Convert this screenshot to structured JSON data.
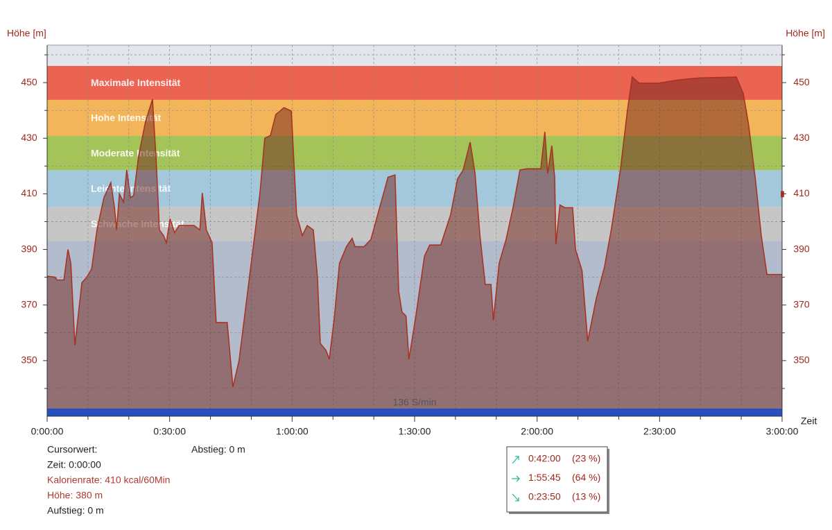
{
  "chart_data": {
    "type": "area",
    "y_label": "Höhe [m]",
    "y2_label": "Höhe [m]",
    "x_label": "Zeit",
    "xlim": [
      0,
      180
    ],
    "ylim": [
      330,
      463.5
    ],
    "xticks": [
      {
        "value": 0,
        "label": "0:00:00"
      },
      {
        "value": 30,
        "label": "0:30:00"
      },
      {
        "value": 60,
        "label": "1:00:00"
      },
      {
        "value": 90,
        "label": "1:30:00"
      },
      {
        "value": 120,
        "label": "2:00:00"
      },
      {
        "value": 150,
        "label": "2:30:00"
      },
      {
        "value": 180,
        "label": "3:00:00"
      }
    ],
    "xminor": [
      10,
      20,
      40,
      50,
      70,
      80,
      100,
      110,
      130,
      140,
      160,
      170
    ],
    "yticks": [
      350,
      370,
      390,
      410,
      430,
      450
    ],
    "yminor": [
      340,
      360,
      380,
      400,
      420,
      440,
      460
    ],
    "grid": true,
    "background_top": "#e2e6ec",
    "background_bottom": "#b3bccd",
    "zones": [
      {
        "name": "Maximale Intensität",
        "from": 443.8,
        "to": 456,
        "color": "#ec6352"
      },
      {
        "name": "Hohe Intensität",
        "from": 430.8,
        "to": 443.8,
        "color": "#f3b55a"
      },
      {
        "name": "Moderate Intensität",
        "from": 418.5,
        "to": 430.8,
        "color": "#a4c45a"
      },
      {
        "name": "Leichte Intensität",
        "from": 405.3,
        "to": 418.5,
        "color": "#a3c8dc"
      },
      {
        "name": "Schwache Intensität",
        "from": 393,
        "to": 405.3,
        "color": "#c6c6c6"
      }
    ],
    "series": [
      {
        "name": "Höhe",
        "color": "#a83224",
        "x": [
          0,
          2,
          2.4,
          4.1,
          5.1,
          5.8,
          6.8,
          8.5,
          9.7,
          10.9,
          12.2,
          13.9,
          15.6,
          16.5,
          17,
          17.7,
          18.7,
          19.5,
          20.4,
          21.2,
          22.4,
          24.1,
          25.8,
          26.7,
          27.5,
          28.5,
          29.2,
          30.1,
          31.2,
          32.3,
          36,
          37.4,
          38,
          39,
          40.4,
          41.4,
          44.1,
          45.5,
          47,
          48.7,
          50.4,
          52.1,
          53.3,
          54.7,
          56,
          58,
          59.8,
          61.1,
          62.5,
          63.7,
          65.2,
          66.2,
          66.9,
          68.3,
          69.1,
          70.3,
          71.6,
          73.3,
          74.7,
          75.4,
          77.6,
          79.3,
          81.8,
          83.5,
          85.2,
          86.1,
          86.9,
          87.9,
          88.6,
          90.3,
          92.4,
          93.7,
          96.4,
          98.8,
          100.5,
          101.9,
          103.6,
          104.8,
          106,
          107.3,
          108.7,
          109.3,
          110.7,
          112.4,
          114.1,
          115.8,
          117.5,
          120.9,
          121.9,
          122.6,
          123.6,
          124.3,
          124.6,
          125.6,
          126.8,
          128.7,
          129.4,
          131,
          132.4,
          134.5,
          136.5,
          138.2,
          140.4,
          142.1,
          143.3,
          145,
          149.7,
          154.8,
          159.9,
          168.8,
          170.5,
          171.8,
          173.5,
          174.9,
          176.3,
          178.3,
          180
        ],
        "values": [
          380.4,
          380,
          379,
          379,
          390,
          385,
          355.5,
          378,
          380,
          383,
          397,
          408.6,
          414,
          405,
          397,
          410,
          407,
          418.6,
          408.6,
          409.4,
          423.6,
          436,
          444,
          422.3,
          397,
          395,
          392.4,
          401,
          396,
          398.6,
          398.6,
          397,
          410.3,
          397,
          392.4,
          363.7,
          363.7,
          340.5,
          350,
          370,
          390,
          410,
          430,
          431,
          438.5,
          441,
          439.8,
          402.4,
          395,
          398.6,
          397,
          380,
          356.2,
          353.7,
          350.5,
          365,
          385,
          391,
          394,
          391,
          391,
          393.6,
          407,
          416,
          416.8,
          375,
          367.5,
          366,
          350.5,
          366,
          387.5,
          391.6,
          391.6,
          402.4,
          415.3,
          418.6,
          428.6,
          417.3,
          395,
          377.4,
          377.4,
          364.5,
          385,
          393.6,
          405,
          418.6,
          419,
          419,
          432.3,
          417.3,
          427.3,
          416,
          391.9,
          406,
          405,
          405,
          390,
          382.4,
          357,
          372.4,
          383.7,
          397.4,
          418.6,
          439.8,
          452,
          449.8,
          449.8,
          451,
          451.7,
          452,
          446,
          434.8,
          414.8,
          395,
          381,
          381,
          381
        ]
      }
    ],
    "hr_bar": {
      "label": "136 S/min",
      "color": "#2650c0"
    },
    "cursor": {
      "title": "Cursorwert:",
      "time": "Zeit: 0:00:00",
      "calories": "Kalorienrate: 410 kcal/60Min",
      "height": "Höhe:  380 m",
      "ascent": "Aufstieg: 0 m",
      "descent": "Abstieg: 0 m"
    },
    "summary": [
      {
        "time": "0:42:00",
        "percent": "(23 %)"
      },
      {
        "time": "1:55:45",
        "percent": "(64 %)"
      },
      {
        "time": "0:23:50",
        "percent": "(13 %)"
      }
    ]
  }
}
